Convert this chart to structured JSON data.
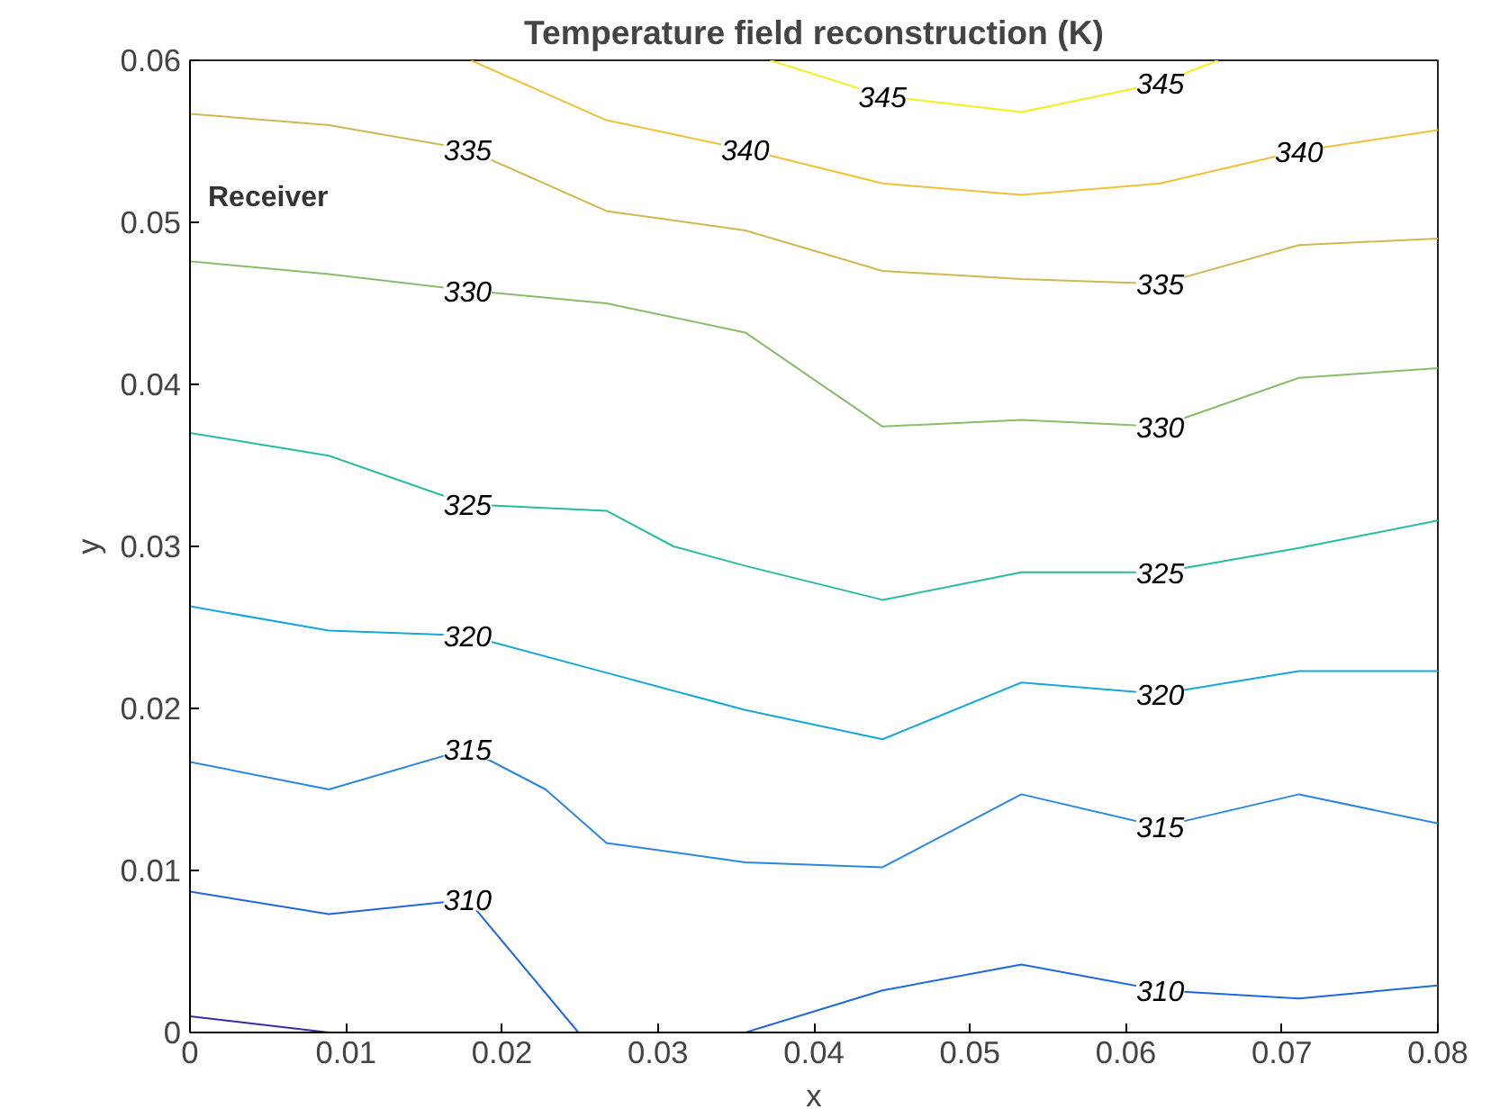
{
  "chart_data": {
    "type": "line",
    "title": "Temperature field reconstruction (K)",
    "xlabel": "x",
    "ylabel": "y",
    "annotations": [
      "Receiver"
    ],
    "xlim": [
      0,
      0.08
    ],
    "ylim": [
      0,
      0.06
    ],
    "xticks": [
      0,
      0.01,
      0.02,
      0.03,
      0.04,
      0.05,
      0.06,
      0.07,
      0.08
    ],
    "yticks": [
      0,
      0.01,
      0.02,
      0.03,
      0.04,
      0.05,
      0.06
    ],
    "grid": false,
    "marker": "none",
    "line_style": "solid",
    "series": [
      {
        "color": "#3e26a8",
        "x": [
          0,
          0.0089
        ],
        "values": [
          0.001,
          0
        ]
      },
      {
        "name": "310",
        "color": "#1f66e0",
        "x": [
          0,
          0.0089,
          0.0178,
          0.0249,
          0.03,
          0.0356,
          0.0444,
          0.0533,
          0.0622,
          0.0711,
          0.08
        ],
        "values": [
          0.0087,
          0.0073,
          0.0082,
          0,
          null,
          0,
          0.0026,
          0.0042,
          0.0026,
          0.0021,
          0.0029
        ]
      },
      {
        "name": "315",
        "color": "#2a86e0",
        "x": [
          0,
          0.0089,
          0.0178,
          0.0228,
          0.0267,
          0.0356,
          0.0444,
          0.0533,
          0.0622,
          0.0711,
          0.08
        ],
        "values": [
          0.0167,
          0.015,
          0.0175,
          0.015,
          0.0117,
          0.0105,
          0.0102,
          0.0147,
          0.0127,
          0.0147,
          0.0129
        ]
      },
      {
        "name": "320",
        "color": "#14a8d8",
        "x": [
          0,
          0.0089,
          0.0178,
          0.0267,
          0.0356,
          0.0444,
          0.0533,
          0.0622,
          0.0711,
          0.08
        ],
        "values": [
          0.0263,
          0.0248,
          0.0245,
          0.0222,
          0.0199,
          0.0181,
          0.0216,
          0.0209,
          0.0223,
          0.0223
        ]
      },
      {
        "name": "325",
        "color": "#25bca0",
        "x": [
          0,
          0.0089,
          0.0178,
          0.0267,
          0.031,
          0.0356,
          0.0444,
          0.0533,
          0.0622,
          0.0711,
          0.08
        ],
        "values": [
          0.037,
          0.0356,
          0.0326,
          0.0322,
          0.03,
          0.0288,
          0.0267,
          0.0284,
          0.0284,
          0.0299,
          0.0316
        ]
      },
      {
        "name": "330",
        "color": "#88bd68",
        "x": [
          0,
          0.0089,
          0.0178,
          0.0267,
          0.0356,
          0.0444,
          0.0533,
          0.0622,
          0.0711,
          0.08
        ],
        "values": [
          0.0476,
          0.0468,
          0.0458,
          0.045,
          0.0432,
          0.0374,
          0.0378,
          0.0374,
          0.0404,
          0.041
        ]
      },
      {
        "name": "335",
        "color": "#d0b850",
        "x": [
          0,
          0.0089,
          0.0178,
          0.0267,
          0.0356,
          0.0444,
          0.0533,
          0.0622,
          0.0711,
          0.08
        ],
        "values": [
          0.0567,
          0.056,
          0.0545,
          0.0507,
          0.0495,
          0.047,
          0.0465,
          0.0462,
          0.0486,
          0.049
        ]
      },
      {
        "name": "340",
        "color": "#f2c035",
        "x": [
          0.018,
          0.0267,
          0.0356,
          0.0444,
          0.0533,
          0.0622,
          0.0711,
          0.08
        ],
        "values": [
          0.06,
          0.0563,
          0.0545,
          0.0524,
          0.0517,
          0.0524,
          0.0544,
          0.0557
        ]
      },
      {
        "name": "345",
        "color": "#f5ee18",
        "x": [
          0.0372,
          0.0444,
          0.0533,
          0.0622,
          0.0659
        ],
        "values": [
          0.06,
          0.0578,
          0.0568,
          0.0586,
          0.06
        ]
      }
    ]
  }
}
